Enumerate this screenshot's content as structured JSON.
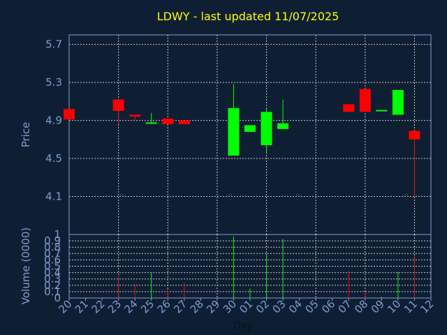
{
  "chart_data": {
    "type": "candlestick",
    "title": "LDWY - last updated 11/07/2025",
    "xlabel": "Day",
    "price_ylabel": "Price",
    "volume_ylabel": "Volume (0000)",
    "x_tick_labels": [
      "20",
      "21",
      "22",
      "23",
      "24",
      "25",
      "26",
      "27",
      "28",
      "29",
      "30",
      "01",
      "02",
      "03",
      "04",
      "05",
      "06",
      "07",
      "08",
      "09",
      "10",
      "11",
      "12"
    ],
    "price_ticks": [
      "5.7",
      "5.3",
      "4.9",
      "4.5",
      "4.1"
    ],
    "price_tick_values": [
      5.7,
      5.3,
      4.9,
      4.5,
      4.1
    ],
    "price_ylim": [
      3.7,
      5.8
    ],
    "volume_ticks": [
      "1",
      "0.9",
      "0.8",
      "0.7",
      "0.6",
      "0.5",
      "0.4",
      "0.3",
      "0.2",
      "0.1",
      "0"
    ],
    "volume_tick_values": [
      1,
      0.9,
      0.8,
      0.7,
      0.6,
      0.5,
      0.4,
      0.3,
      0.2,
      0.1,
      0
    ],
    "volume_ylim": [
      0,
      1
    ],
    "candles": [
      {
        "day": "20",
        "open": 5.02,
        "close": 4.91,
        "high": 5.02,
        "low": 4.91,
        "volume": 0.0
      },
      {
        "day": "23",
        "open": 5.12,
        "close": 5.0,
        "high": 5.12,
        "low": 4.86,
        "volume": 0.37
      },
      {
        "day": "24",
        "open": 4.96,
        "close": 4.94,
        "high": 4.96,
        "low": 4.9,
        "volume": 0.22
      },
      {
        "day": "25",
        "open": 4.87,
        "close": 4.88,
        "high": 4.98,
        "low": 4.86,
        "volume": 0.4
      },
      {
        "day": "26",
        "open": 4.92,
        "close": 4.86,
        "high": 4.92,
        "low": 4.86,
        "volume": 0.14
      },
      {
        "day": "27",
        "open": 4.9,
        "close": 4.86,
        "high": 4.9,
        "low": 4.86,
        "volume": 0.24
      },
      {
        "day": "30",
        "open": 4.53,
        "close": 5.03,
        "high": 5.28,
        "low": 4.53,
        "volume": 0.97
      },
      {
        "day": "01",
        "open": 4.78,
        "close": 4.85,
        "high": 4.85,
        "low": 4.78,
        "volume": 0.15
      },
      {
        "day": "02",
        "open": 4.64,
        "close": 4.99,
        "high": 5.03,
        "low": 4.56,
        "volume": 0.7
      },
      {
        "day": "03",
        "open": 4.81,
        "close": 4.87,
        "high": 5.12,
        "low": 4.81,
        "volume": 0.93
      },
      {
        "day": "07",
        "open": 5.07,
        "close": 4.99,
        "high": 5.07,
        "low": 4.99,
        "volume": 0.42
      },
      {
        "day": "08",
        "open": 5.23,
        "close": 4.99,
        "high": 5.23,
        "low": 4.99,
        "volume": 0.1
      },
      {
        "day": "09",
        "open": 5.0,
        "close": 5.01,
        "high": 5.01,
        "low": 5.0,
        "volume": 0.02
      },
      {
        "day": "10",
        "open": 4.96,
        "close": 5.22,
        "high": 5.22,
        "low": 4.96,
        "volume": 0.41
      },
      {
        "day": "11",
        "open": 4.79,
        "close": 4.7,
        "high": 4.79,
        "low": 4.1,
        "volume": 0.64
      }
    ]
  },
  "colors": {
    "background": "#0f1f33",
    "plot_bg": "#0f1f33",
    "grid": "#c8c8c8",
    "axis": "#7f9fcf",
    "title": "#ffff00",
    "up": "#00ff00",
    "down": "#ff0000"
  }
}
